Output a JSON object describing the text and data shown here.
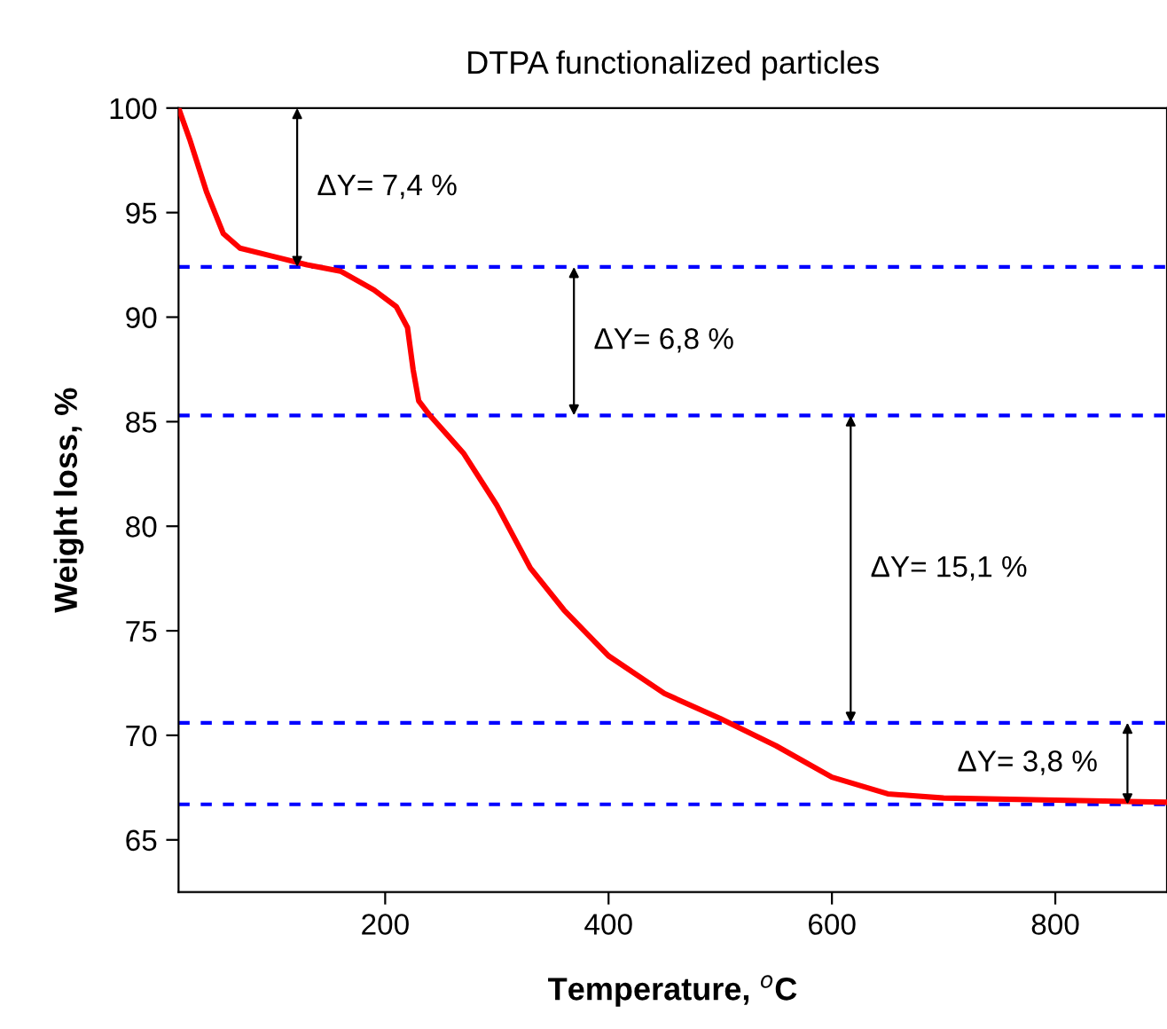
{
  "chart_data": {
    "type": "line",
    "title": "DTPA functionalized particles",
    "xlabel": "Temperature, $^{o}$C",
    "ylabel": "Weight loss, %",
    "xlim": [
      15,
      900
    ],
    "ylim": [
      62.5,
      100
    ],
    "xticks": [
      200,
      400,
      600,
      800
    ],
    "yticks": [
      65,
      70,
      75,
      80,
      85,
      90,
      95,
      100
    ],
    "grid": false,
    "legend": false,
    "series": [
      {
        "color": "#ff0000",
        "x": [
          15,
          25,
          40,
          55,
          70,
          100,
          130,
          160,
          190,
          210,
          220,
          225,
          230,
          240,
          270,
          300,
          330,
          360,
          400,
          450,
          500,
          550,
          600,
          650,
          700,
          800,
          900
        ],
        "values": [
          100,
          98.5,
          96,
          94,
          93.3,
          92.9,
          92.5,
          92.2,
          91.3,
          90.5,
          89.5,
          87.5,
          86,
          85.3,
          83.5,
          81,
          78,
          76,
          73.8,
          72,
          70.8,
          69.5,
          68,
          67.2,
          67.0,
          66.9,
          66.8
        ]
      }
    ],
    "ref_lines": [
      {
        "axis": "y",
        "value": 92.4,
        "color": "#0000ff",
        "line_style": "dashed"
      },
      {
        "axis": "y",
        "value": 85.3,
        "color": "#0000ff",
        "line_style": "dashed"
      },
      {
        "axis": "y",
        "value": 70.6,
        "color": "#0000ff",
        "line_style": "dashed"
      },
      {
        "axis": "y",
        "value": 66.7,
        "color": "#0000ff",
        "line_style": "dashed"
      }
    ],
    "annotations": [
      "ΔY= 7,4 %",
      "ΔY= 6,8 %",
      "ΔY= 15,1 %",
      "ΔY= 3,8 %"
    ]
  }
}
